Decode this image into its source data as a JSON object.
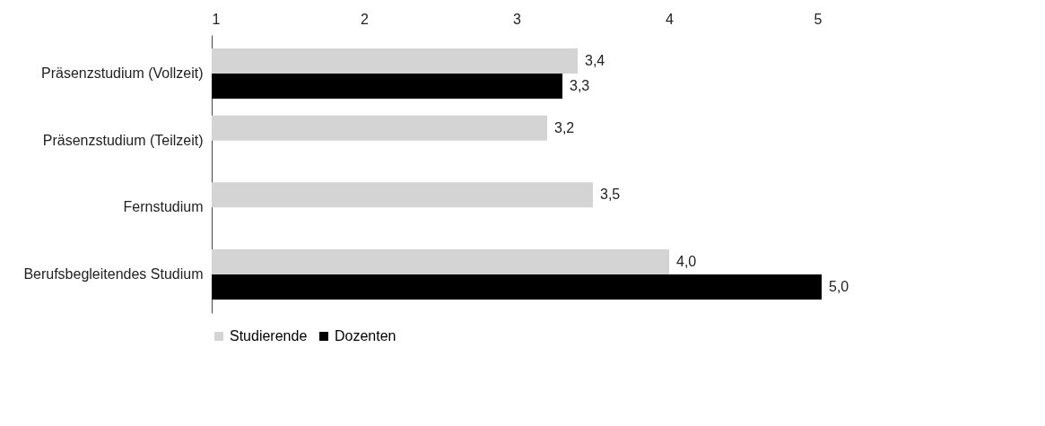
{
  "chart_data": {
    "type": "bar",
    "orientation": "horizontal",
    "categories": [
      "Präsenzstudium (Vollzeit)",
      "Präsenzstudium (Teilzeit)",
      "Fernstudium",
      "Berufsbegleitendes Studium"
    ],
    "series": [
      {
        "name": "Studierende",
        "color": "#d4d4d4",
        "values": [
          3.4,
          3.2,
          3.5,
          4.0
        ],
        "value_labels": [
          "3,4",
          "3,2",
          "3,5",
          "4,0"
        ]
      },
      {
        "name": "Dozenten",
        "color": "#000000",
        "values": [
          3.3,
          null,
          null,
          5.0
        ],
        "value_labels": [
          "3,3",
          null,
          null,
          "5,0"
        ]
      }
    ],
    "xlim": [
      1,
      5
    ],
    "xticks": [
      1,
      2,
      3,
      4,
      5
    ],
    "grid": false,
    "legend": "bottom"
  }
}
